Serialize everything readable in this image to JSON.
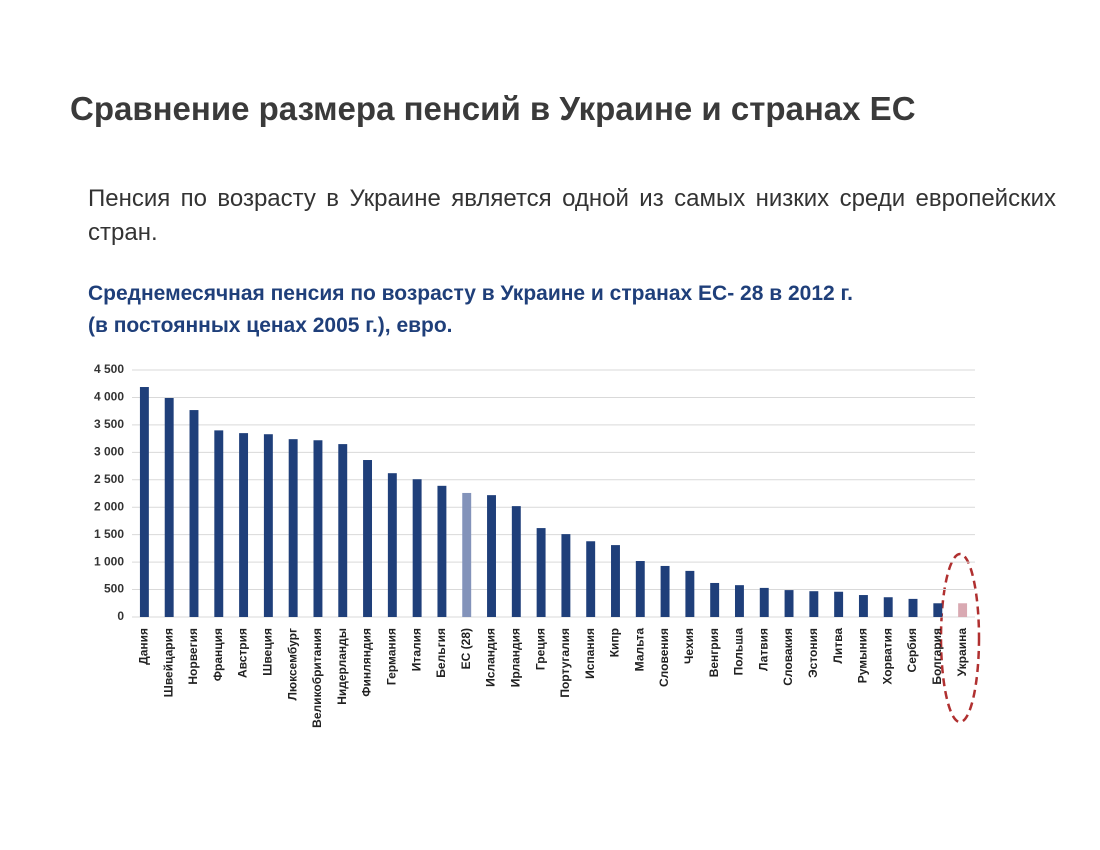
{
  "heading": "Сравнение размера пенсий в Украине и странах ЕС",
  "paragraph": "Пенсия по возрасту в Украине является одной из самых низких среди европейских стран.",
  "chart_data": {
    "type": "bar",
    "title": "Среднемесячная пенсия по возрасту в Украине и странах ЕС- 28 в 2012 г.",
    "subtitle": "(в постоянных ценах 2005 г.), евро.",
    "categories": [
      "Дания",
      "Швейцария",
      "Норвегия",
      "Франция",
      "Австрия",
      "Швеция",
      "Люксембург",
      "Великобритания",
      "Нидерланды",
      "Финляндия",
      "Германия",
      "Италия",
      "Бельгия",
      "ЕС (28)",
      "Исландия",
      "Ирландия",
      "Греция",
      "Португалия",
      "Испания",
      "Кипр",
      "Мальта",
      "Словения",
      "Чехия",
      "Венгрия",
      "Польша",
      "Латвия",
      "Словакия",
      "Эстония",
      "Литва",
      "Румыния",
      "Хорватия",
      "Сербия",
      "Болгария",
      "Украина"
    ],
    "values": [
      4190,
      3990,
      3770,
      3400,
      3350,
      3330,
      3240,
      3220,
      3150,
      2860,
      2620,
      2510,
      2390,
      2260,
      2220,
      2020,
      1620,
      1510,
      1380,
      1310,
      1020,
      930,
      840,
      620,
      580,
      530,
      490,
      470,
      460,
      400,
      360,
      330,
      250,
      250
    ],
    "colors": [
      "#1f3f7a",
      "#1f3f7a",
      "#1f3f7a",
      "#1f3f7a",
      "#1f3f7a",
      "#1f3f7a",
      "#1f3f7a",
      "#1f3f7a",
      "#1f3f7a",
      "#1f3f7a",
      "#1f3f7a",
      "#1f3f7a",
      "#1f3f7a",
      "#8393ba",
      "#1f3f7a",
      "#1f3f7a",
      "#1f3f7a",
      "#1f3f7a",
      "#1f3f7a",
      "#1f3f7a",
      "#1f3f7a",
      "#1f3f7a",
      "#1f3f7a",
      "#1f3f7a",
      "#1f3f7a",
      "#1f3f7a",
      "#1f3f7a",
      "#1f3f7a",
      "#1f3f7a",
      "#1f3f7a",
      "#1f3f7a",
      "#1f3f7a",
      "#1f3f7a",
      "#d9a9b2"
    ],
    "ylim": [
      0,
      4500
    ],
    "yticks": [
      0,
      500,
      {
        "value": 1000,
        "label": "1 000"
      },
      {
        "value": 1500,
        "label": "1 500"
      },
      {
        "value": 2000,
        "label": "2 000"
      },
      {
        "value": 2500,
        "label": "2 500"
      },
      {
        "value": 3000,
        "label": "3 000"
      },
      {
        "value": 3500,
        "label": "3 500"
      },
      {
        "value": 4000,
        "label": "4 000"
      },
      {
        "value": 4500,
        "label": "4 500"
      }
    ],
    "grid": true
  }
}
